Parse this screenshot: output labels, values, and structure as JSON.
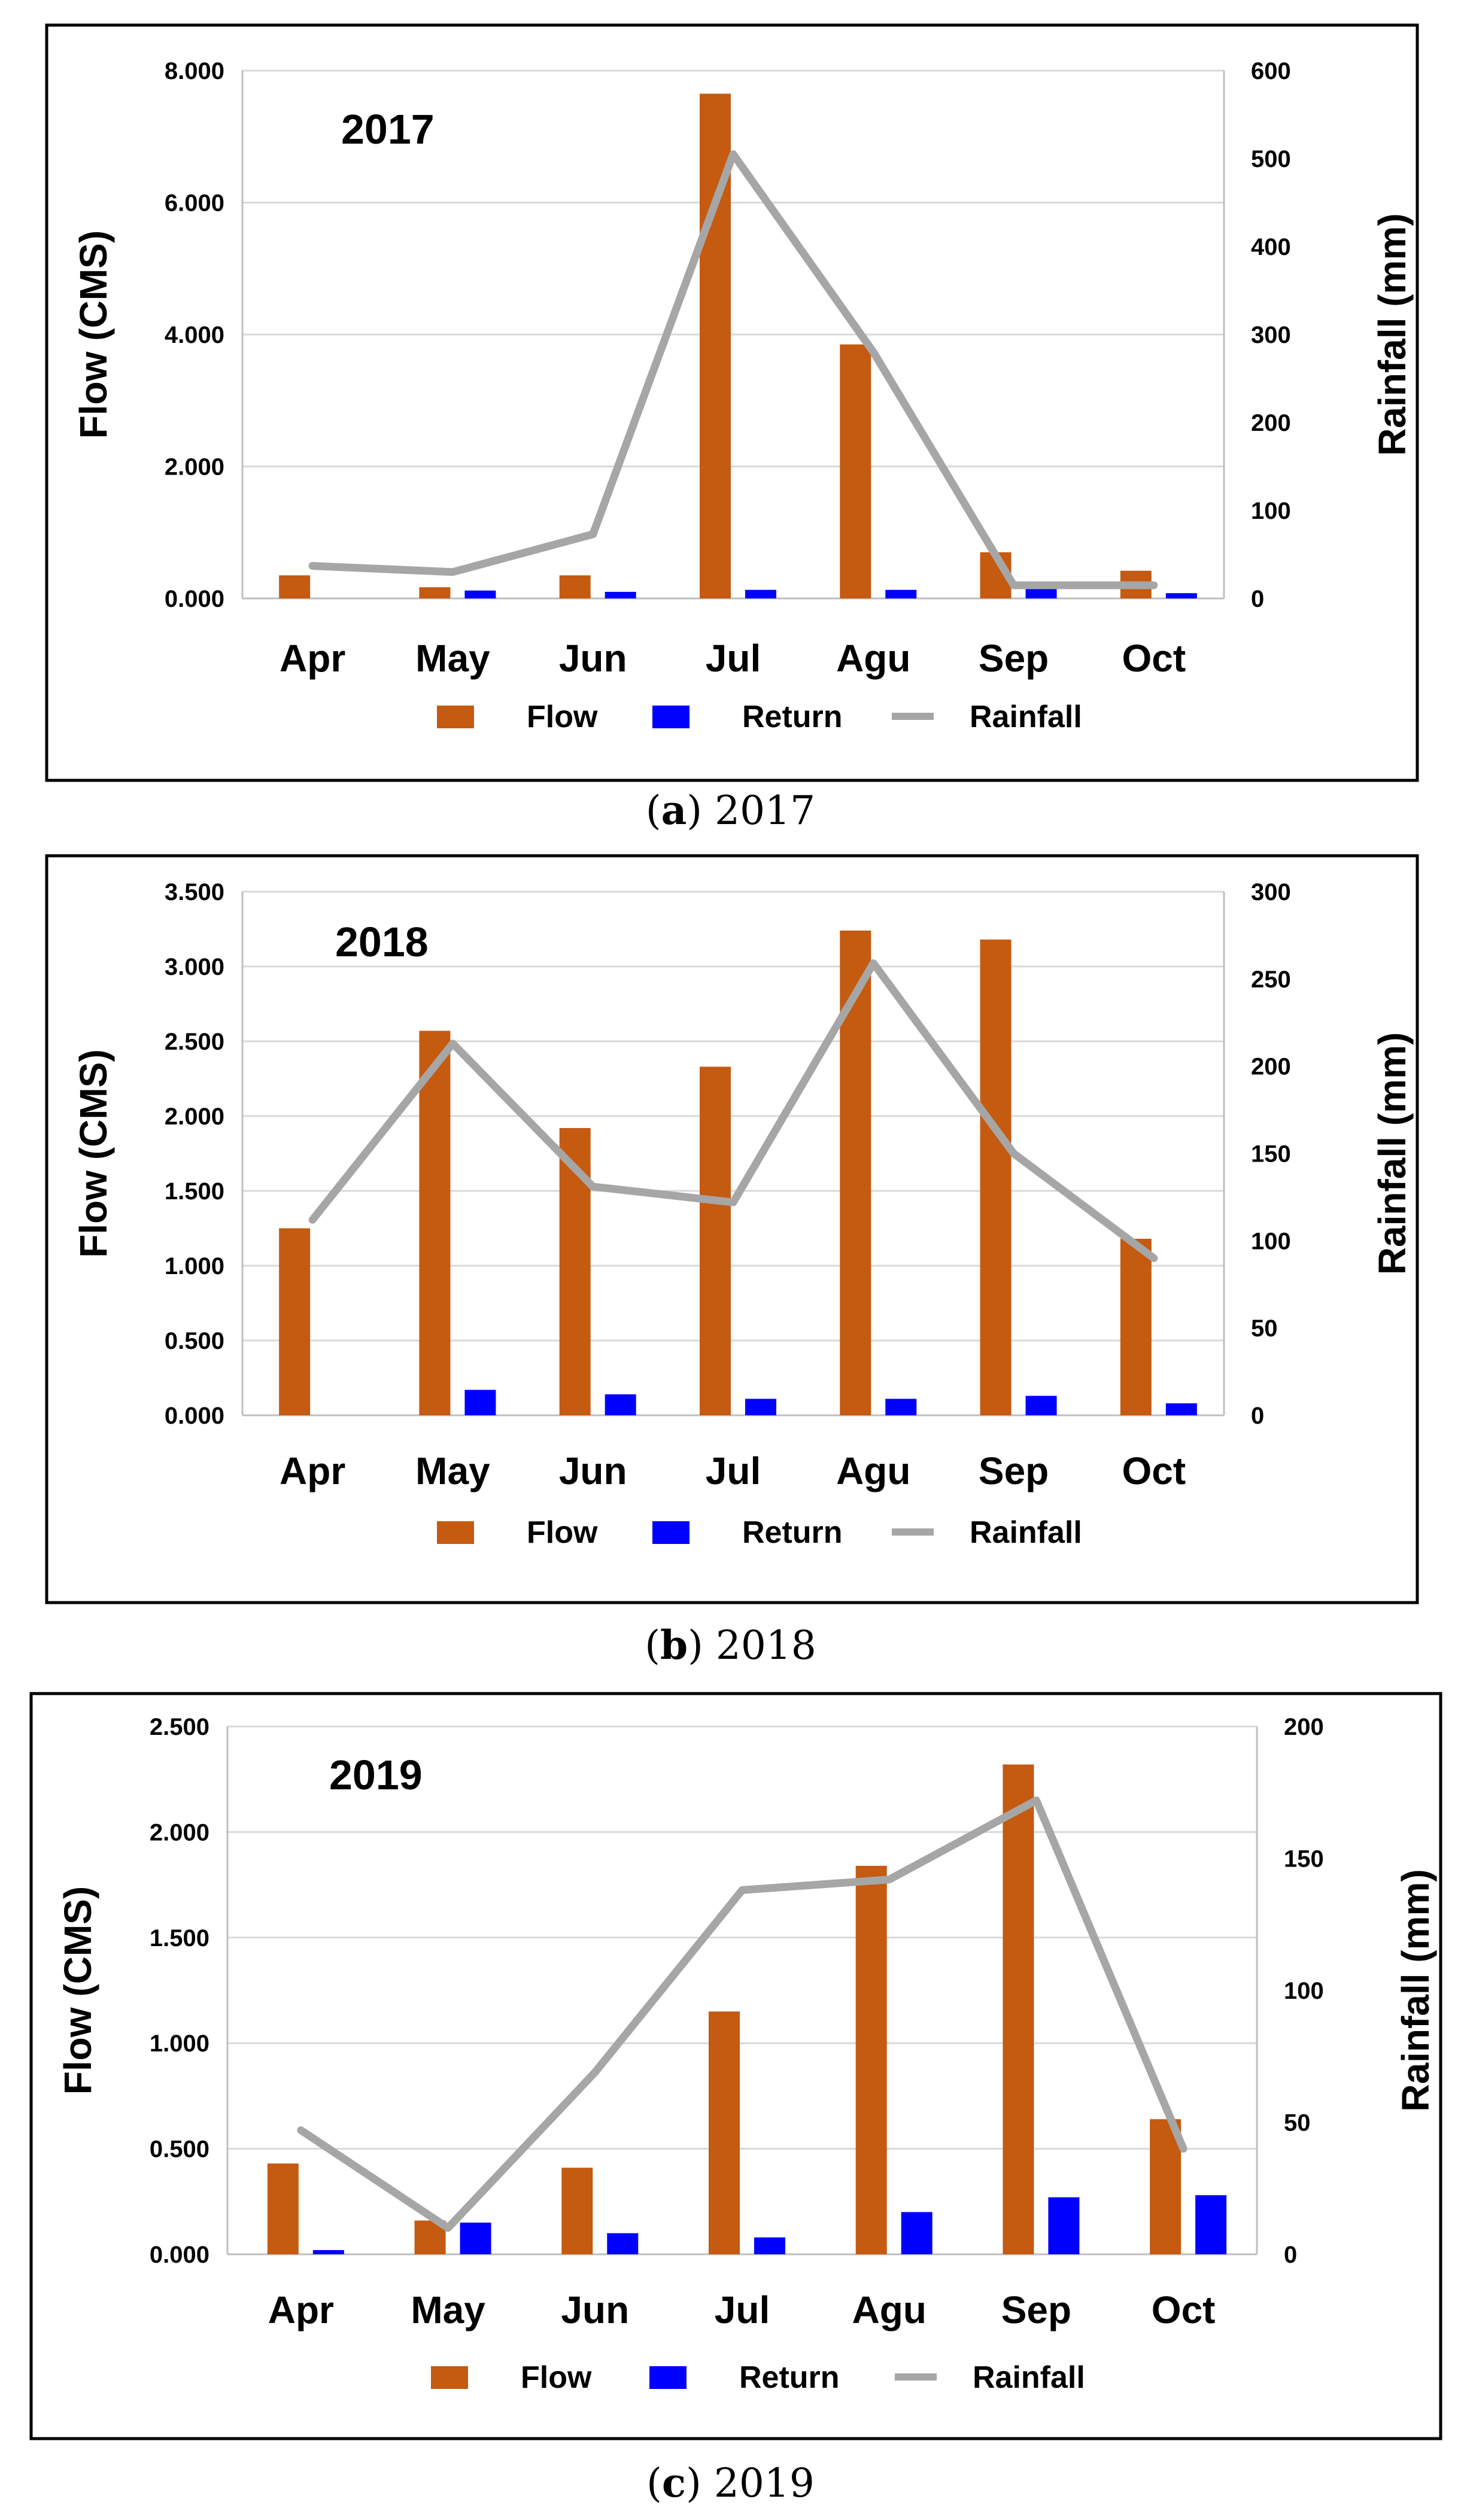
{
  "colors": {
    "flow": "#C55A11",
    "return": "#0000FF",
    "rainfall": "#A6A6A6",
    "grid": "#D9D9D9",
    "frame": "#000000"
  },
  "chart_data": [
    {
      "type": "bar",
      "title": "2017",
      "caption_letter": "a",
      "caption_year": "2017",
      "categories": [
        "Apr",
        "May",
        "Jun",
        "Jul",
        "Agu",
        "Sep",
        "Oct"
      ],
      "ylabel": "Flow (CMS)",
      "y2label": "Rainfall (mm)",
      "ylim": [
        0,
        8
      ],
      "y2lim": [
        0,
        600
      ],
      "yticks": [
        "0.000",
        "2.000",
        "4.000",
        "6.000",
        "8.000"
      ],
      "y2ticks": [
        "0",
        "100",
        "200",
        "300",
        "400",
        "500",
        "600"
      ],
      "series": [
        {
          "name": "Flow",
          "kind": "bar",
          "axis": "left",
          "values": [
            0.35,
            0.17,
            0.35,
            7.65,
            3.85,
            0.7,
            0.42
          ]
        },
        {
          "name": "Return",
          "kind": "bar",
          "axis": "left",
          "values": [
            0.0,
            0.12,
            0.1,
            0.13,
            0.13,
            0.18,
            0.08
          ]
        },
        {
          "name": "Rainfall",
          "kind": "line",
          "axis": "right",
          "values": [
            37,
            30,
            73,
            505,
            280,
            15,
            15
          ]
        }
      ],
      "legend": [
        "Flow",
        "Return",
        "Rainfall"
      ]
    },
    {
      "type": "bar",
      "title": "2018",
      "caption_letter": "b",
      "caption_year": "2018",
      "categories": [
        "Apr",
        "May",
        "Jun",
        "Jul",
        "Agu",
        "Sep",
        "Oct"
      ],
      "ylabel": "Flow (CMS)",
      "y2label": "Rainfall (mm)",
      "ylim": [
        0,
        3.5
      ],
      "y2lim": [
        0,
        300
      ],
      "yticks": [
        "0.000",
        "0.500",
        "1.000",
        "1.500",
        "2.000",
        "2.500",
        "3.000",
        "3.500"
      ],
      "y2ticks": [
        "0",
        "50",
        "100",
        "150",
        "200",
        "250",
        "300"
      ],
      "series": [
        {
          "name": "Flow",
          "kind": "bar",
          "axis": "left",
          "values": [
            1.25,
            2.57,
            1.92,
            2.33,
            3.24,
            3.18,
            1.18
          ]
        },
        {
          "name": "Return",
          "kind": "bar",
          "axis": "left",
          "values": [
            0.0,
            0.17,
            0.14,
            0.11,
            0.11,
            0.13,
            0.08
          ]
        },
        {
          "name": "Rainfall",
          "kind": "line",
          "axis": "right",
          "values": [
            112,
            213,
            131,
            122,
            259,
            150,
            90
          ]
        }
      ],
      "legend": [
        "Flow",
        "Return",
        "Rainfall"
      ]
    },
    {
      "type": "bar",
      "title": "2019",
      "caption_letter": "c",
      "caption_year": "2019",
      "categories": [
        "Apr",
        "May",
        "Jun",
        "Jul",
        "Agu",
        "Sep",
        "Oct"
      ],
      "ylabel": "Flow (CMS)",
      "y2label": "Rainfall (mm)",
      "ylim": [
        0,
        2.5
      ],
      "y2lim": [
        0,
        200
      ],
      "yticks": [
        "0.000",
        "0.500",
        "1.000",
        "1.500",
        "2.000",
        "2.500"
      ],
      "y2ticks": [
        "0",
        "50",
        "100",
        "150",
        "200"
      ],
      "series": [
        {
          "name": "Flow",
          "kind": "bar",
          "axis": "left",
          "values": [
            0.43,
            0.16,
            0.41,
            1.15,
            1.84,
            2.32,
            0.64
          ]
        },
        {
          "name": "Return",
          "kind": "bar",
          "axis": "left",
          "values": [
            0.02,
            0.15,
            0.1,
            0.08,
            0.2,
            0.27,
            0.28
          ]
        },
        {
          "name": "Rainfall",
          "kind": "line",
          "axis": "right",
          "values": [
            47,
            10,
            69,
            138,
            142,
            172,
            40
          ]
        }
      ],
      "legend": [
        "Flow",
        "Return",
        "Rainfall"
      ]
    }
  ]
}
